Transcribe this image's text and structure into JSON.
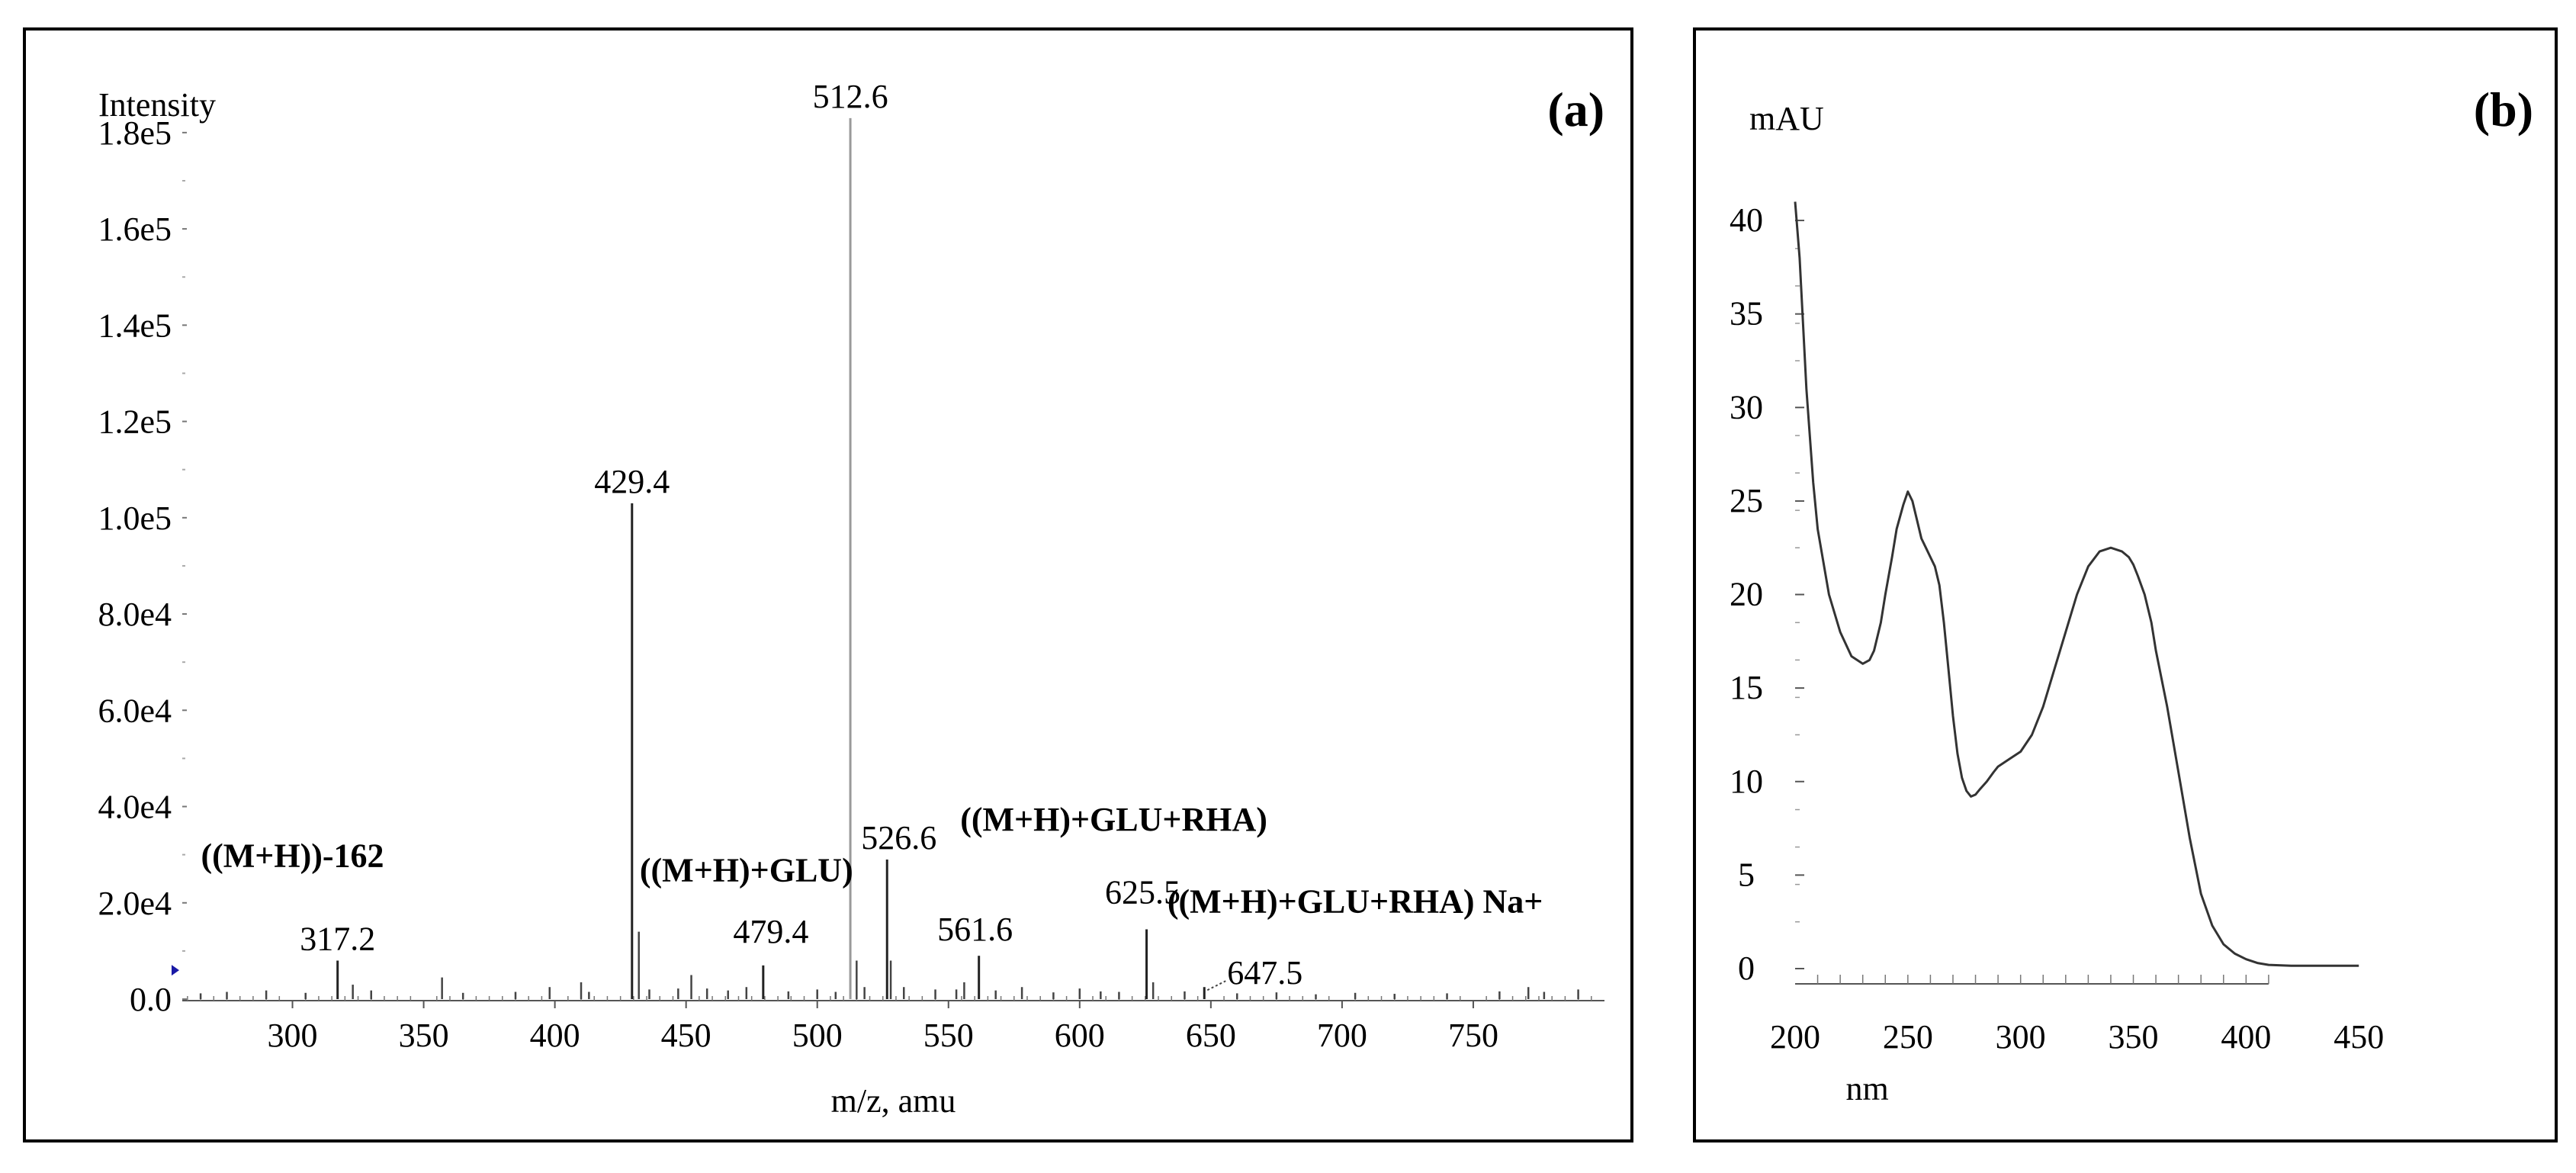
{
  "chart_data": [
    {
      "type": "bar",
      "panel_label": "(a)",
      "ylabel": "Intensity",
      "xlabel": "m/z, amu",
      "xlim": [
        258,
        800
      ],
      "ylim": [
        0,
        190000
      ],
      "xticks": [
        300,
        350,
        400,
        450,
        500,
        550,
        600,
        650,
        700,
        750
      ],
      "yticks": [
        0,
        20000,
        40000,
        60000,
        80000,
        100000,
        120000,
        140000,
        160000,
        180000
      ],
      "ytick_labels": [
        "0.0",
        "2.0e4",
        "4.0e4",
        "6.0e4",
        "8.0e4",
        "1.0e5",
        "1.2e5",
        "1.4e5",
        "1.6e5",
        "1.8e5"
      ],
      "peaks": [
        {
          "x": 317.2,
          "y": 8000,
          "label": "317.2"
        },
        {
          "x": 429.4,
          "y": 103000,
          "label": "429.4"
        },
        {
          "x": 479.4,
          "y": 7000,
          "label": "479.4"
        },
        {
          "x": 512.6,
          "y": 183000,
          "label": "512.6"
        },
        {
          "x": 526.6,
          "y": 29000,
          "label": "526.6"
        },
        {
          "x": 561.6,
          "y": 9000,
          "label": "561.6"
        },
        {
          "x": 625.5,
          "y": 14500,
          "label": "625.5"
        },
        {
          "x": 647.5,
          "y": 2500,
          "label": "647.5"
        }
      ],
      "minor_peaks": [
        {
          "x": 265,
          "y": 1200
        },
        {
          "x": 275,
          "y": 1500
        },
        {
          "x": 290,
          "y": 1800
        },
        {
          "x": 305,
          "y": 1300
        },
        {
          "x": 323,
          "y": 3000
        },
        {
          "x": 330,
          "y": 1800
        },
        {
          "x": 357,
          "y": 4500
        },
        {
          "x": 365,
          "y": 1300
        },
        {
          "x": 385,
          "y": 1500
        },
        {
          "x": 398,
          "y": 2500
        },
        {
          "x": 410,
          "y": 3500
        },
        {
          "x": 413,
          "y": 1500
        },
        {
          "x": 432,
          "y": 14000
        },
        {
          "x": 436,
          "y": 2000
        },
        {
          "x": 447,
          "y": 2200
        },
        {
          "x": 452,
          "y": 5000
        },
        {
          "x": 458,
          "y": 2200
        },
        {
          "x": 466,
          "y": 1800
        },
        {
          "x": 473,
          "y": 2500
        },
        {
          "x": 489,
          "y": 1600
        },
        {
          "x": 500,
          "y": 2000
        },
        {
          "x": 507,
          "y": 1500
        },
        {
          "x": 515,
          "y": 8000
        },
        {
          "x": 518,
          "y": 2500
        },
        {
          "x": 528,
          "y": 8000
        },
        {
          "x": 533,
          "y": 2500
        },
        {
          "x": 545,
          "y": 2000
        },
        {
          "x": 553,
          "y": 2000
        },
        {
          "x": 556,
          "y": 3500
        },
        {
          "x": 568,
          "y": 1800
        },
        {
          "x": 578,
          "y": 2500
        },
        {
          "x": 590,
          "y": 1400
        },
        {
          "x": 600,
          "y": 2200
        },
        {
          "x": 608,
          "y": 1600
        },
        {
          "x": 615,
          "y": 1500
        },
        {
          "x": 628,
          "y": 3500
        },
        {
          "x": 640,
          "y": 1600
        },
        {
          "x": 660,
          "y": 1200
        },
        {
          "x": 675,
          "y": 1400
        },
        {
          "x": 690,
          "y": 1000
        },
        {
          "x": 705,
          "y": 1300
        },
        {
          "x": 720,
          "y": 1100
        },
        {
          "x": 740,
          "y": 1200
        },
        {
          "x": 760,
          "y": 1600
        },
        {
          "x": 771,
          "y": 2500
        },
        {
          "x": 777,
          "y": 1500
        },
        {
          "x": 790,
          "y": 2000
        }
      ],
      "annotations": [
        {
          "text": "((M+H))-162",
          "x": 300,
          "y": 27500
        },
        {
          "text": "((M+H)+GLU)",
          "x": 473,
          "y": 24500
        },
        {
          "text": "((M+H)+GLU+RHA)",
          "x": 613,
          "y": 35000
        },
        {
          "text": "((M+H)+GLU+RHA) Na+",
          "x": 705,
          "y": 18000
        }
      ]
    },
    {
      "type": "line",
      "panel_label": "(b)",
      "ylabel": "mAU",
      "xlabel": "nm",
      "xlim": [
        200,
        450
      ],
      "ylim": [
        0,
        42
      ],
      "xticks": [
        200,
        250,
        300,
        350,
        400,
        450
      ],
      "yticks": [
        0,
        5,
        10,
        15,
        20,
        25,
        30,
        35,
        40
      ],
      "series": [
        {
          "x": [
            200,
            202,
            205,
            208,
            210,
            215,
            220,
            225,
            230,
            233,
            235,
            238,
            240,
            243,
            245,
            248,
            250,
            252,
            254,
            256,
            258,
            260,
            262,
            264,
            266,
            268,
            270,
            272,
            274,
            276,
            278,
            280,
            282,
            285,
            288,
            290,
            295,
            300,
            305,
            310,
            315,
            320,
            325,
            330,
            335,
            340,
            345,
            348,
            350,
            352,
            355,
            358,
            360,
            365,
            370,
            375,
            380,
            385,
            390,
            395,
            400,
            405,
            410,
            420,
            430,
            440,
            450
          ],
          "y": [
            41,
            38,
            31,
            26,
            23.5,
            20,
            18,
            16.7,
            16.3,
            16.5,
            17,
            18.5,
            20,
            22,
            23.5,
            24.8,
            25.5,
            25,
            24,
            23,
            22.5,
            22,
            21.5,
            20.5,
            18.5,
            16,
            13.5,
            11.5,
            10.2,
            9.5,
            9.2,
            9.3,
            9.6,
            10,
            10.5,
            10.8,
            11.2,
            11.6,
            12.5,
            14,
            16,
            18,
            20,
            21.5,
            22.3,
            22.5,
            22.3,
            22,
            21.6,
            21,
            20,
            18.5,
            17,
            14,
            10.5,
            7,
            4,
            2.3,
            1.3,
            0.8,
            0.5,
            0.3,
            0.2,
            0.15,
            0.15,
            0.15,
            0.15
          ]
        }
      ]
    }
  ]
}
